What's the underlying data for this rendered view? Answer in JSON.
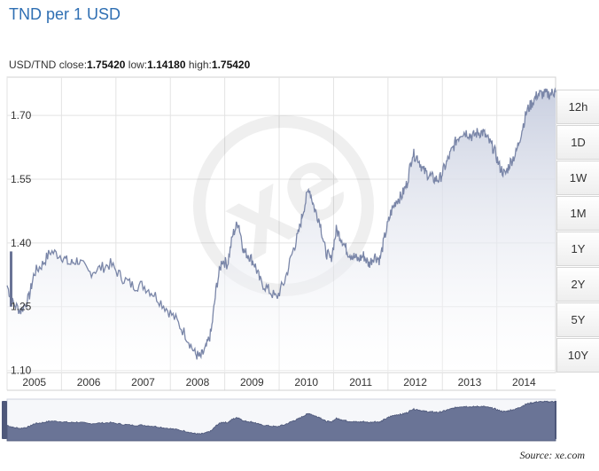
{
  "title": "TND per 1 USD",
  "stats": {
    "pair": "USD/TND",
    "close_label": "close:",
    "close": "1.75420",
    "low_label": "low:",
    "low": "1.14180",
    "high_label": "high:",
    "high": "1.75420"
  },
  "range_buttons": [
    "12h",
    "1D",
    "1W",
    "1M",
    "1Y",
    "2Y",
    "5Y",
    "10Y"
  ],
  "source": "Source: xe.com",
  "colors": {
    "line": "#7a86a8",
    "fill_top": "#c9cfe0",
    "navigator_fill": "#6a7496",
    "title": "#2f6fb3"
  },
  "chart_data": {
    "type": "area",
    "y_ticks": [
      "1.10",
      "1.25",
      "1.40",
      "1.55",
      "1.70"
    ],
    "y_tick_values": [
      1.1,
      1.25,
      1.4,
      1.55,
      1.7
    ],
    "ylim": [
      1.095,
      1.79
    ],
    "x_ticks": [
      "2005",
      "2006",
      "2007",
      "2008",
      "2009",
      "2010",
      "2011",
      "2012",
      "2013",
      "2014"
    ],
    "xlim": [
      2004.5,
      2014.58
    ],
    "grid": true,
    "series": [
      {
        "x": [
          2004.5,
          2004.6,
          2004.75,
          2004.9,
          2005.0,
          2005.15,
          2005.3,
          2005.5,
          2005.65,
          2005.8,
          2006.0,
          2006.2,
          2006.4,
          2006.6,
          2006.8,
          2007.0,
          2007.2,
          2007.4,
          2007.6,
          2007.8,
          2007.95,
          2008.05,
          2008.15,
          2008.25,
          2008.35,
          2008.45,
          2008.55,
          2008.65,
          2008.75,
          2008.85,
          2008.95,
          2009.05,
          2009.15,
          2009.3,
          2009.45,
          2009.6,
          2009.75,
          2009.85,
          2009.95,
          2010.05,
          2010.15,
          2010.25,
          2010.35,
          2010.45,
          2010.55,
          2010.65,
          2010.75,
          2010.85,
          2010.95,
          2011.05,
          2011.15,
          2011.25,
          2011.35,
          2011.45,
          2011.55,
          2011.65,
          2011.75,
          2011.85,
          2011.95,
          2012.05,
          2012.15,
          2012.25,
          2012.35,
          2012.45,
          2012.55,
          2012.65,
          2012.75,
          2012.85,
          2012.95,
          2013.05,
          2013.15,
          2013.25,
          2013.35,
          2013.45,
          2013.55,
          2013.65,
          2013.75,
          2013.85,
          2013.95,
          2014.05,
          2014.15,
          2014.25,
          2014.35,
          2014.45,
          2014.55,
          2014.58
        ],
        "y": [
          1.3,
          1.26,
          1.24,
          1.27,
          1.33,
          1.35,
          1.38,
          1.37,
          1.35,
          1.36,
          1.33,
          1.34,
          1.35,
          1.32,
          1.3,
          1.3,
          1.28,
          1.25,
          1.22,
          1.18,
          1.14,
          1.13,
          1.15,
          1.19,
          1.3,
          1.36,
          1.35,
          1.42,
          1.45,
          1.38,
          1.37,
          1.35,
          1.31,
          1.29,
          1.27,
          1.31,
          1.38,
          1.42,
          1.48,
          1.53,
          1.48,
          1.45,
          1.38,
          1.36,
          1.43,
          1.41,
          1.38,
          1.37,
          1.36,
          1.37,
          1.35,
          1.37,
          1.36,
          1.42,
          1.47,
          1.5,
          1.51,
          1.54,
          1.61,
          1.6,
          1.57,
          1.56,
          1.55,
          1.55,
          1.58,
          1.61,
          1.64,
          1.66,
          1.66,
          1.65,
          1.66,
          1.66,
          1.64,
          1.62,
          1.58,
          1.56,
          1.59,
          1.61,
          1.66,
          1.71,
          1.73,
          1.75,
          1.75,
          1.75,
          1.754,
          1.754
        ]
      }
    ]
  }
}
